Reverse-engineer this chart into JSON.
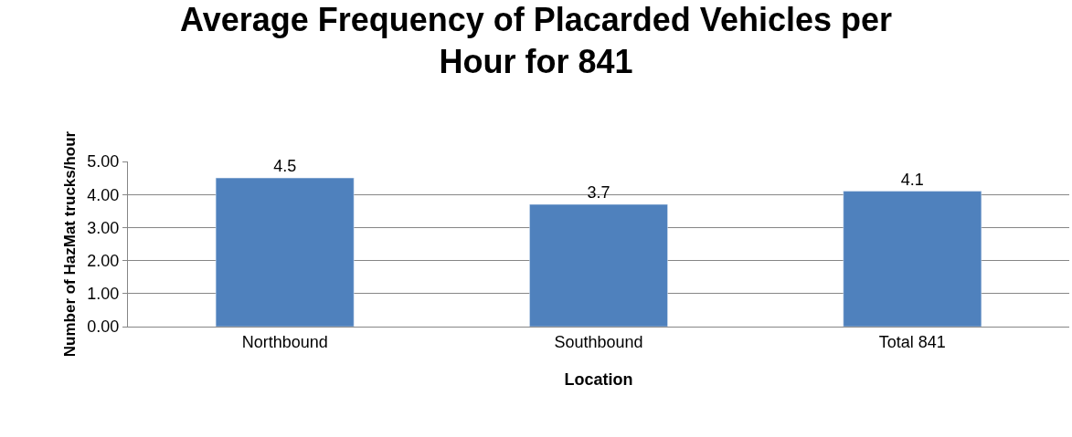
{
  "chart_data": {
    "type": "bar",
    "title": "Average Frequency of Placarded Vehicles per\nHour for 841",
    "xlabel": "Location",
    "ylabel": "Number of HazMat trucks/hour",
    "categories": [
      "Northbound",
      "Southbound",
      "Total 841"
    ],
    "values": [
      4.5,
      3.7,
      4.1
    ],
    "color": "#4f81bd",
    "data_labels": true,
    "ylim": [
      0,
      5
    ],
    "yticks": [
      {
        "value": 0,
        "label": "0.00"
      },
      {
        "value": 1,
        "label": "1.00"
      },
      {
        "value": 2,
        "label": "2.00"
      },
      {
        "value": 3,
        "label": "3.00"
      },
      {
        "value": 4,
        "label": "4.00"
      },
      {
        "value": 5,
        "label": "5.00"
      }
    ],
    "grid": "y",
    "legend": false
  }
}
